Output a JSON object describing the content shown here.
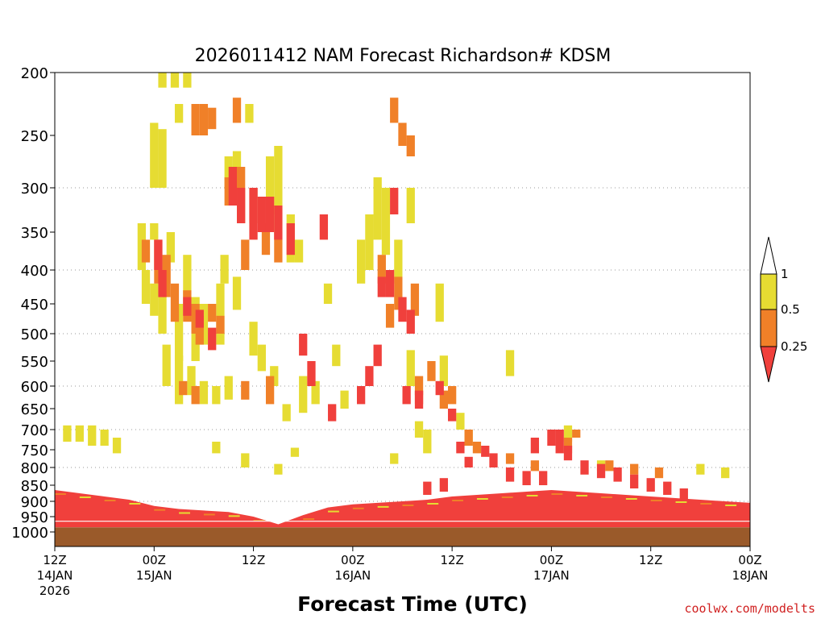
{
  "chart_data": {
    "type": "heatmap",
    "title": "2026011412 NAM Forecast Richardson# KDSM",
    "xlabel": "Forecast Time (UTC)",
    "ylabel": "",
    "credit": "coolwx.com/modelts",
    "y_scale": "pressure (hPa), inverted, log-like",
    "ylim": [
      1020,
      200
    ],
    "y_ticks": [
      200,
      250,
      300,
      350,
      400,
      450,
      500,
      550,
      600,
      650,
      700,
      750,
      800,
      850,
      900,
      950,
      1000
    ],
    "y_gridlines": [
      300,
      400,
      500,
      600,
      700,
      800,
      900
    ],
    "x_range_hours": [
      0,
      84
    ],
    "x_ticks": [
      {
        "hour": 0,
        "line1": "12Z",
        "line2": "14JAN",
        "line3": "2026"
      },
      {
        "hour": 12,
        "line1": "00Z",
        "line2": "15JAN",
        "line3": ""
      },
      {
        "hour": 24,
        "line1": "12Z",
        "line2": "",
        "line3": ""
      },
      {
        "hour": 36,
        "line1": "00Z",
        "line2": "16JAN",
        "line3": ""
      },
      {
        "hour": 48,
        "line1": "12Z",
        "line2": "",
        "line3": ""
      },
      {
        "hour": 60,
        "line1": "00Z",
        "line2": "17JAN",
        "line3": ""
      },
      {
        "hour": 72,
        "line1": "12Z",
        "line2": "",
        "line3": ""
      },
      {
        "hour": 84,
        "line1": "00Z",
        "line2": "18JAN",
        "line3": ""
      }
    ],
    "colorbar": {
      "labels": [
        "1",
        "0.5",
        "0.25"
      ],
      "colors": {
        "lt_0_25": "#f0403c",
        "0_25_to_0_5": "#f08028",
        "0_5_to_1": "#e6dc32",
        "gt_1": "#ffffff"
      }
    },
    "colors": {
      "ground": "#9a5a2a",
      "lt_0_25": "#f0403c",
      "0_25_to_0_5": "#f08028",
      "0_5_to_1": "#e6dc32"
    },
    "series": [
      {
        "category": "0_5_to_1",
        "cells": [
          [
            13,
            200,
            212
          ],
          [
            14.5,
            200,
            212
          ],
          [
            16,
            200,
            212
          ],
          [
            12,
            240,
            300
          ],
          [
            13,
            245,
            300
          ],
          [
            15,
            225,
            240
          ],
          [
            23.5,
            225,
            240
          ],
          [
            10.5,
            340,
            400
          ],
          [
            12,
            340,
            360
          ],
          [
            14,
            350,
            390
          ],
          [
            16,
            380,
            440
          ],
          [
            11,
            400,
            450
          ],
          [
            12,
            420,
            470
          ],
          [
            13,
            430,
            500
          ],
          [
            15,
            450,
            550
          ],
          [
            17,
            440,
            550
          ],
          [
            18,
            450,
            520
          ],
          [
            20,
            420,
            520
          ],
          [
            13.5,
            520,
            600
          ],
          [
            15,
            540,
            640
          ],
          [
            16.5,
            560,
            620
          ],
          [
            18,
            590,
            640
          ],
          [
            19.5,
            600,
            640
          ],
          [
            21,
            580,
            630
          ],
          [
            21,
            270,
            300
          ],
          [
            22,
            265,
            300
          ],
          [
            26,
            270,
            330
          ],
          [
            27,
            260,
            350
          ],
          [
            28.5,
            330,
            390
          ],
          [
            29.5,
            360,
            390
          ],
          [
            20.5,
            380,
            420
          ],
          [
            22,
            410,
            460
          ],
          [
            24,
            480,
            540
          ],
          [
            25,
            520,
            570
          ],
          [
            26.5,
            560,
            600
          ],
          [
            28,
            640,
            680
          ],
          [
            30,
            580,
            660
          ],
          [
            31.5,
            590,
            640
          ],
          [
            33,
            420,
            450
          ],
          [
            34,
            520,
            560
          ],
          [
            35,
            610,
            650
          ],
          [
            37,
            360,
            420
          ],
          [
            38,
            330,
            400
          ],
          [
            39,
            290,
            360
          ],
          [
            40,
            300,
            380
          ],
          [
            41.5,
            360,
            420
          ],
          [
            43,
            300,
            340
          ],
          [
            43,
            530,
            600
          ],
          [
            44,
            680,
            720
          ],
          [
            45,
            700,
            760
          ],
          [
            46.5,
            420,
            480
          ],
          [
            47,
            540,
            600
          ],
          [
            49,
            660,
            700
          ],
          [
            50,
            700,
            740
          ],
          [
            55,
            530,
            580
          ],
          [
            1.5,
            690,
            730
          ],
          [
            3,
            690,
            730
          ],
          [
            4.5,
            690,
            740
          ],
          [
            6,
            700,
            740
          ],
          [
            7.5,
            720,
            760
          ],
          [
            19.5,
            730,
            760
          ],
          [
            23,
            760,
            800
          ],
          [
            27,
            790,
            820
          ],
          [
            29,
            745,
            770
          ],
          [
            41,
            760,
            790
          ],
          [
            62,
            690,
            730
          ],
          [
            66,
            780,
            810
          ],
          [
            78,
            790,
            820
          ],
          [
            81,
            800,
            830
          ]
        ]
      },
      {
        "category": "0_25_to_0_5",
        "cells": [
          [
            17,
            225,
            250
          ],
          [
            18,
            225,
            250
          ],
          [
            19,
            228,
            245
          ],
          [
            22,
            220,
            240
          ],
          [
            11,
            360,
            390
          ],
          [
            12.5,
            360,
            420
          ],
          [
            13.5,
            380,
            440
          ],
          [
            14.5,
            420,
            480
          ],
          [
            16,
            430,
            480
          ],
          [
            17,
            450,
            500
          ],
          [
            19,
            450,
            480
          ],
          [
            20,
            470,
            500
          ],
          [
            17.5,
            470,
            520
          ],
          [
            21,
            290,
            320
          ],
          [
            22.5,
            280,
            340
          ],
          [
            24,
            300,
            340
          ],
          [
            25.5,
            340,
            380
          ],
          [
            27,
            350,
            390
          ],
          [
            23,
            360,
            400
          ],
          [
            15.5,
            590,
            620
          ],
          [
            17,
            600,
            640
          ],
          [
            23,
            590,
            630
          ],
          [
            26,
            580,
            640
          ],
          [
            41,
            220,
            240
          ],
          [
            42,
            240,
            260
          ],
          [
            43,
            250,
            270
          ],
          [
            39.5,
            380,
            420
          ],
          [
            40.5,
            450,
            490
          ],
          [
            41.5,
            410,
            460
          ],
          [
            43.5,
            420,
            470
          ],
          [
            44,
            580,
            620
          ],
          [
            44,
            610,
            640
          ],
          [
            45.5,
            550,
            590
          ],
          [
            47,
            610,
            650
          ],
          [
            48,
            600,
            640
          ],
          [
            50,
            700,
            740
          ],
          [
            51,
            730,
            760
          ],
          [
            55,
            760,
            790
          ],
          [
            58,
            780,
            810
          ],
          [
            62,
            720,
            760
          ],
          [
            63,
            700,
            720
          ],
          [
            67,
            780,
            810
          ],
          [
            70,
            790,
            820
          ],
          [
            73,
            800,
            830
          ]
        ]
      },
      {
        "category": "lt_0_25",
        "cells": [
          [
            12.5,
            360,
            400
          ],
          [
            13,
            400,
            440
          ],
          [
            16,
            440,
            470
          ],
          [
            17.5,
            460,
            490
          ],
          [
            19,
            490,
            530
          ],
          [
            21.5,
            280,
            320
          ],
          [
            22.5,
            300,
            340
          ],
          [
            24,
            300,
            360
          ],
          [
            25,
            310,
            350
          ],
          [
            26,
            310,
            350
          ],
          [
            27,
            320,
            360
          ],
          [
            28.5,
            340,
            380
          ],
          [
            30,
            500,
            540
          ],
          [
            31,
            550,
            600
          ],
          [
            33.5,
            640,
            680
          ],
          [
            32.5,
            330,
            360
          ],
          [
            37,
            600,
            640
          ],
          [
            38,
            560,
            600
          ],
          [
            39,
            520,
            560
          ],
          [
            39.5,
            410,
            440
          ],
          [
            40.5,
            400,
            440
          ],
          [
            41,
            300,
            330
          ],
          [
            42,
            440,
            480
          ],
          [
            43,
            460,
            500
          ],
          [
            42.5,
            600,
            640
          ],
          [
            44,
            610,
            650
          ],
          [
            46.5,
            590,
            620
          ],
          [
            48,
            650,
            680
          ],
          [
            49,
            730,
            760
          ],
          [
            50,
            770,
            800
          ],
          [
            52,
            740,
            770
          ],
          [
            53,
            760,
            800
          ],
          [
            58,
            720,
            760
          ],
          [
            60,
            700,
            740
          ],
          [
            61,
            700,
            760
          ],
          [
            62,
            740,
            780
          ],
          [
            64,
            780,
            820
          ],
          [
            66,
            790,
            830
          ],
          [
            68,
            800,
            840
          ],
          [
            70,
            820,
            860
          ],
          [
            72,
            830,
            870
          ],
          [
            74,
            840,
            880
          ],
          [
            76,
            860,
            900
          ],
          [
            55,
            800,
            840
          ],
          [
            57,
            810,
            850
          ],
          [
            59,
            810,
            850
          ],
          [
            45,
            840,
            880
          ],
          [
            47,
            830,
            870
          ]
        ]
      }
    ],
    "boundary_layer": {
      "hours": [
        0,
        3,
        6,
        9,
        12,
        15,
        18,
        21,
        24,
        27,
        30,
        33,
        36,
        39,
        42,
        45,
        48,
        51,
        54,
        57,
        60,
        63,
        66,
        69,
        72,
        75,
        78,
        81,
        84
      ],
      "red_top_hpa": [
        865,
        875,
        885,
        895,
        915,
        925,
        930,
        935,
        950,
        975,
        945,
        920,
        910,
        905,
        900,
        895,
        885,
        880,
        875,
        870,
        865,
        870,
        875,
        880,
        885,
        890,
        895,
        900,
        905
      ],
      "ground_top_hpa": 985
    }
  }
}
